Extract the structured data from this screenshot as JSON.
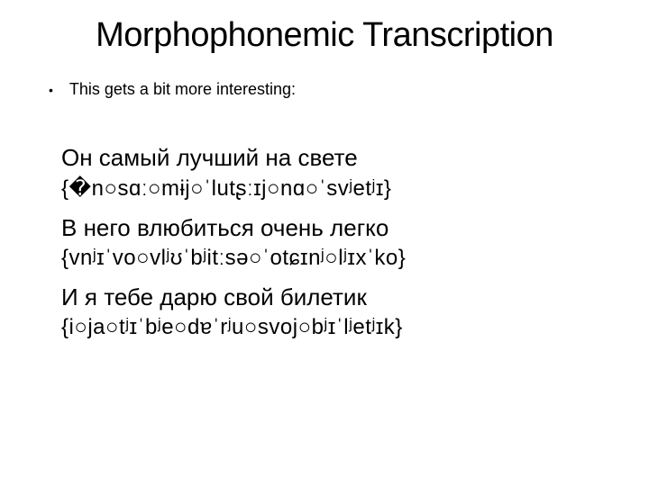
{
  "slide": {
    "title": "Morphophonemic Transcription",
    "bullet": {
      "marker": "•",
      "text": "This gets a bit more interesting:"
    },
    "lines": [
      {
        "russian": "Он самый лучший на свете",
        "transcription": "{�n○sɑː○mɨj○ˈlutʂːɪj○nɑ○ˈsvʲetʲɪ}"
      },
      {
        "russian": "В него влюбиться очень легко",
        "transcription": "{vnʲɪˈvo○vlʲʊˈbʲitːsə○ˈotɕɪnʲ○lʲɪxˈko}"
      },
      {
        "russian": "И я тебе дарю свой билетик",
        "transcription": "{i○ja○tʲɪˈbʲe○dɐˈrʲu○svoj○bʲɪˈlʲetʲɪk}"
      }
    ]
  },
  "style": {
    "background_color": "#ffffff",
    "text_color": "#000000",
    "title_fontsize": 38,
    "bullet_fontsize": 18,
    "russian_fontsize": 26,
    "transcription_fontsize": 24
  }
}
